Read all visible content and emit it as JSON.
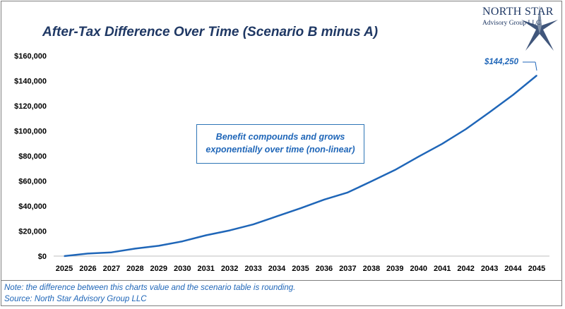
{
  "chart_data": {
    "type": "line",
    "title": "After-Tax Difference Over Time (Scenario B minus A)",
    "xlabel": "",
    "ylabel": "",
    "categories": [
      "2025",
      "2026",
      "2027",
      "2028",
      "2029",
      "2030",
      "2031",
      "2032",
      "2033",
      "2034",
      "2035",
      "2036",
      "2037",
      "2038",
      "2039",
      "2040",
      "2041",
      "2042",
      "2043",
      "2044",
      "2045"
    ],
    "series": [
      {
        "values": [
          0,
          2000,
          3000,
          6000,
          8200,
          11800,
          16600,
          20500,
          25300,
          31800,
          38200,
          45100,
          50800,
          59700,
          68800,
          79500,
          89700,
          101400,
          114900,
          128800,
          144250
        ],
        "color": "#1f66b8"
      }
    ],
    "ylim": [
      0,
      160000
    ],
    "yticks": [
      0,
      20000,
      40000,
      60000,
      80000,
      100000,
      120000,
      140000,
      160000
    ],
    "ytick_labels": [
      "$0",
      "$20,000",
      "$40,000",
      "$60,000",
      "$80,000",
      "$100,000",
      "$120,000",
      "$140,000",
      "$160,000"
    ],
    "grid": false,
    "end_label": "$144,250",
    "annotation": {
      "line1": "Benefit compounds and grows",
      "line2": "exponentially over time (non-linear)"
    }
  },
  "logo": {
    "name": "NORTH STAR",
    "subtitle": "Advisory Group LLC"
  },
  "notes": [
    "Note: the difference between this charts value and the scenario table is rounding.",
    "Source: North Star Advisory Group LLC"
  ],
  "colors": {
    "accent": "#1f66b8",
    "title": "#1f3864"
  }
}
